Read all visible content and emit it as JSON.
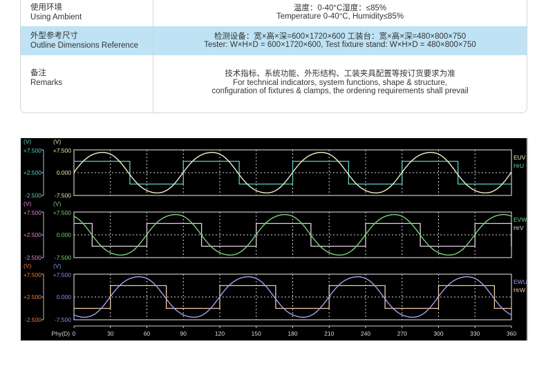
{
  "table": {
    "rows": [
      {
        "label_cn": "使用环境",
        "label_en": "Using Ambient",
        "value_lines": [
          "温度：0-40°C湿度：≤85%",
          "Temperature 0-40°C, Humidity≤85%"
        ]
      },
      {
        "label_cn": "外型参考尺寸",
        "label_en": "Outline Dimensions Reference",
        "value_lines": [
          "检测设备：宽×高×深=600×1720×600  工装台：宽×高×深=480×800×750",
          "Tester: W×H×D = 600×1720×600, Test fixture stand: W×H×D = 480×800×750"
        ]
      },
      {
        "label_cn": "备注",
        "label_en": "Remarks",
        "value_lines": [
          "技术指标、系统功能、外形结构、工装夹具配置等按订货要求为准",
          "For technical indicators, system functions, shape & structure,",
          "configuration of fixtures & clamps, the ordering requirements shall prevail"
        ]
      }
    ],
    "highlight_color": "#bfe3f4"
  },
  "chart_data": {
    "type": "line",
    "background": "#000000",
    "grid": true,
    "xlabel": "Phy(D)",
    "xlim": [
      0,
      360
    ],
    "xticks": [
      "0",
      "30",
      "60",
      "90",
      "120",
      "150",
      "180",
      "210",
      "240",
      "270",
      "300",
      "330",
      "360"
    ],
    "panels": [
      {
        "unit_left": "(V)",
        "unit_inner": "(V)",
        "left_ticks": [
          "+7.500",
          "+2.500",
          "-2.500"
        ],
        "left_range": [
          -2.5,
          7.5
        ],
        "inner_ticks": [
          "+7.500",
          "0.000",
          "-7.500"
        ],
        "inner_range": [
          -7.5,
          7.5
        ],
        "left_color": "#5fd0c8",
        "inner_color": "#e8e6b0",
        "wave": {
          "name": "EUV",
          "color": "#f2f0c8",
          "amplitude": 7.2,
          "period": 90,
          "rising_zero_at": 0
        },
        "square": {
          "name": "HrU",
          "color": "#5fd0c8",
          "high": 5,
          "low": 0,
          "high_intervals": [
            [
              0,
              46
            ],
            [
              90,
              136
            ],
            [
              180,
              226
            ],
            [
              270,
              316
            ]
          ]
        }
      },
      {
        "unit_left": "(V)",
        "unit_inner": "(V)",
        "left_ticks": [
          "+7.500",
          "+2.500",
          "-2.500"
        ],
        "left_range": [
          -2.5,
          7.5
        ],
        "inner_ticks": [
          "+7.500",
          "0.000",
          "-7.500"
        ],
        "inner_range": [
          -7.5,
          7.5
        ],
        "left_color": "#e088d0",
        "inner_color": "#7ad27a",
        "wave": {
          "name": "EVW",
          "color": "#7ad27a",
          "amplitude": 7.2,
          "period": 90,
          "rising_zero_at": 60
        },
        "square": {
          "name": "HrV",
          "color": "#ead0e6",
          "high": 5,
          "low": 0,
          "high_intervals": [
            [
              0,
              15
            ],
            [
              60,
              105
            ],
            [
              150,
              195
            ],
            [
              240,
              285
            ],
            [
              330,
              360
            ]
          ]
        }
      },
      {
        "unit_left": "(V)",
        "unit_inner": "(V)",
        "left_ticks": [
          "+7.500",
          "+2.500",
          "-2.500"
        ],
        "left_range": [
          -2.5,
          7.5
        ],
        "inner_ticks": [
          "+7.500",
          "0.000",
          "-7.500"
        ],
        "inner_range": [
          -7.5,
          7.5
        ],
        "left_color": "#f07a40",
        "inner_color": "#8c8ef0",
        "wave": {
          "name": "EWU",
          "color": "#a0a2f2",
          "amplitude": 7.2,
          "period": 90,
          "rising_zero_at": 30
        },
        "square": {
          "name": "HrW",
          "color": "#f2cca8",
          "high": 5,
          "low": 0,
          "high_intervals": [
            [
              30,
              76
            ],
            [
              120,
              166
            ],
            [
              210,
              256
            ],
            [
              300,
              346
            ]
          ]
        }
      }
    ]
  }
}
